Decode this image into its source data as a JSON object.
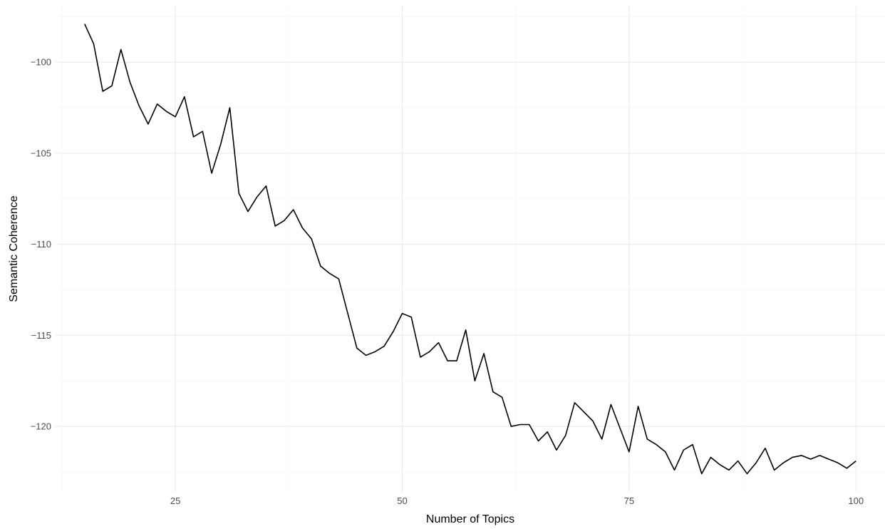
{
  "chart_data": {
    "type": "line",
    "title": "",
    "xlabel": "Number of Topics",
    "ylabel": "Semantic Coherence",
    "xlim": [
      11.8,
      103.2
    ],
    "ylim": [
      -123.6,
      -96.9
    ],
    "x_ticks": [
      25,
      50,
      75,
      100
    ],
    "x_minor_ticks": [
      12.5,
      37.5,
      62.5,
      87.5
    ],
    "y_ticks": [
      -100,
      -105,
      -110,
      -115,
      -120
    ],
    "y_minor_ticks": [
      -97.5,
      -102.5,
      -107.5,
      -112.5,
      -117.5,
      -122.5
    ],
    "grid": true,
    "legend": "none",
    "line_color": "#000000",
    "series": [
      {
        "x": [
          15,
          16,
          17,
          18,
          19,
          20,
          21,
          22,
          23,
          24,
          25,
          26,
          27,
          28,
          29,
          30,
          31,
          32,
          33,
          34,
          35,
          36,
          37,
          38,
          39,
          40,
          41,
          42,
          43,
          44,
          45,
          46,
          47,
          48,
          49,
          50,
          51,
          52,
          53,
          54,
          55,
          56,
          57,
          58,
          59,
          60,
          61,
          62,
          63,
          64,
          65,
          66,
          67,
          68,
          69,
          70,
          71,
          72,
          73,
          74,
          75,
          76,
          77,
          78,
          79,
          80,
          81,
          82,
          83,
          84,
          85,
          86,
          87,
          88,
          89,
          90,
          91,
          92,
          93,
          94,
          95,
          96,
          97,
          98,
          99,
          100
        ],
        "values": [
          -97.9,
          -99.0,
          -101.6,
          -101.3,
          -99.3,
          -101.1,
          -102.4,
          -103.4,
          -102.3,
          -102.7,
          -103.0,
          -101.9,
          -104.1,
          -103.8,
          -106.1,
          -104.5,
          -102.5,
          -107.2,
          -108.2,
          -107.4,
          -106.8,
          -109.0,
          -108.7,
          -108.1,
          -109.1,
          -109.7,
          -111.2,
          -111.6,
          -111.9,
          -113.8,
          -115.7,
          -116.1,
          -115.9,
          -115.6,
          -114.8,
          -113.8,
          -114.0,
          -116.2,
          -115.9,
          -115.4,
          -116.4,
          -116.4,
          -114.7,
          -117.5,
          -116.0,
          -118.1,
          -118.4,
          -120.0,
          -119.9,
          -119.9,
          -120.8,
          -120.3,
          -121.3,
          -120.5,
          -118.7,
          -119.2,
          -119.7,
          -120.7,
          -118.8,
          -120.1,
          -121.4,
          -118.9,
          -120.7,
          -121.0,
          -121.4,
          -122.4,
          -121.3,
          -121.0,
          -122.6,
          -121.7,
          -122.1,
          -122.4,
          -121.9,
          -122.6,
          -122.0,
          -121.2,
          -122.4,
          -122.0,
          -121.7,
          -121.6,
          -121.8,
          -121.6,
          -121.8,
          -122.0,
          -122.3,
          -121.9
        ]
      }
    ]
  }
}
